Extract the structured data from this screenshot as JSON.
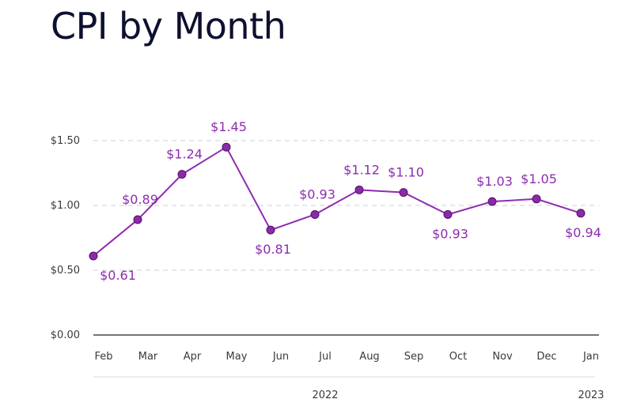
{
  "title": "CPI by Month",
  "colors": {
    "line": "#8e2bb0",
    "marker_fill": "#8b2aa8",
    "marker_stroke": "#4f1466",
    "grid": "#cfcfcf",
    "label": "#8e2bb0"
  },
  "chart_data": {
    "type": "line",
    "title": "CPI by Month",
    "xlabel": "",
    "ylabel": "",
    "categories": [
      "Feb",
      "Mar",
      "Apr",
      "May",
      "Jun",
      "Jul",
      "Aug",
      "Sep",
      "Oct",
      "Nov",
      "Dec",
      "Jan"
    ],
    "groups": [
      {
        "label": "2022",
        "from": 0,
        "to": 10
      },
      {
        "label": "2023",
        "from": 11,
        "to": 11
      }
    ],
    "series": [
      {
        "values": [
          0.61,
          0.89,
          1.24,
          1.45,
          0.81,
          0.93,
          1.12,
          1.1,
          0.93,
          1.03,
          1.05,
          0.94
        ],
        "labels": [
          "$0.61",
          "$0.89",
          "$1.24",
          "$1.45",
          "$0.81",
          "$0.93",
          "$1.12",
          "$1.10",
          "$0.93",
          "$1.03",
          "$1.05",
          "$0.94"
        ]
      }
    ],
    "yticks": [
      "$0.00",
      "$0.50",
      "$1.00",
      "$1.50"
    ],
    "ytick_values": [
      0,
      0.5,
      1.0,
      1.5
    ],
    "ylim": [
      0,
      1.5
    ],
    "grid": true,
    "legend": "none"
  }
}
